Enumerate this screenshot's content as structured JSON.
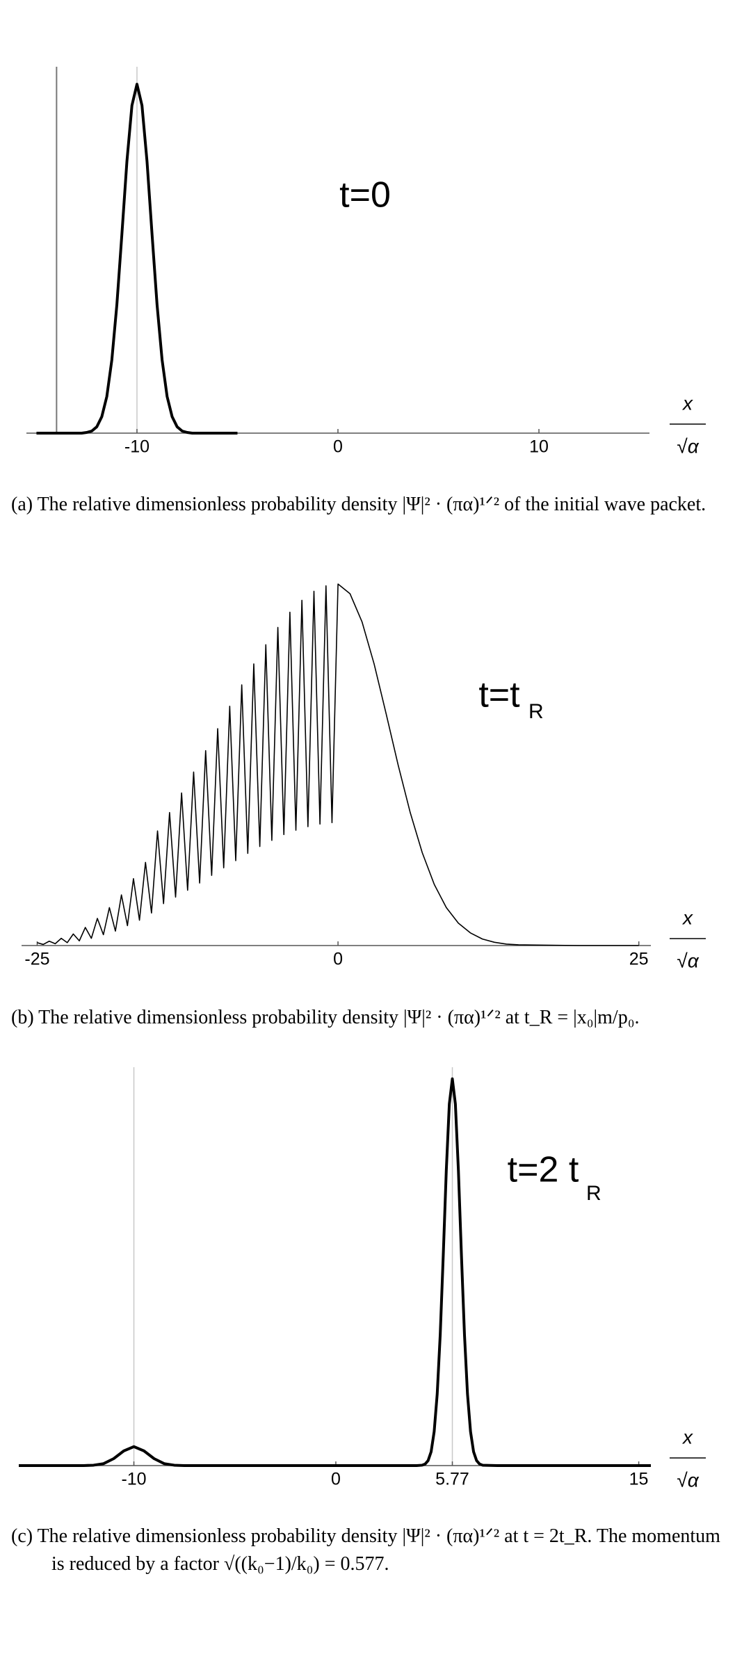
{
  "chart_data": [
    {
      "type": "line",
      "annotation": "t=0",
      "xlabel": "x",
      "xlabel_denominator": "√α",
      "caption": "(a) The relative dimensionless probability density |Ψ|² · (πα)¹ᐟ² of the initial wave packet.",
      "xlim": [
        -15.5,
        15.5
      ],
      "ylim": [
        0,
        1.05
      ],
      "xticks": [
        -10,
        0,
        10
      ],
      "yaxis_x": -14,
      "vlines": [
        -10
      ],
      "color": "#000000",
      "x": [
        -15,
        -14,
        -13,
        -12.75,
        -12.5,
        -12.25,
        -12,
        -11.75,
        -11.5,
        -11.25,
        -11,
        -10.75,
        -10.5,
        -10.25,
        -10,
        -9.75,
        -9.5,
        -9.25,
        -9,
        -8.75,
        -8.5,
        -8.25,
        -8,
        -7.75,
        -7.5,
        -7.25,
        -7,
        -6,
        -5
      ],
      "values": [
        0,
        0,
        0,
        0,
        0.002,
        0.006,
        0.018,
        0.047,
        0.105,
        0.21,
        0.368,
        0.57,
        0.779,
        0.939,
        1,
        0.939,
        0.779,
        0.57,
        0.368,
        0.21,
        0.105,
        0.047,
        0.018,
        0.006,
        0.002,
        0,
        0,
        0,
        0
      ]
    },
    {
      "type": "line",
      "annotation": "t=t",
      "annotation_sub": "R",
      "xlabel": "x",
      "xlabel_denominator": "√α",
      "caption": "(b) The relative dimensionless probability density |Ψ|² · (πα)¹ᐟ² at t_R = |x₀|m/p₀.",
      "xlim": [
        -26.3,
        26
      ],
      "ylim": [
        0,
        1.05
      ],
      "xticks": [
        -25,
        0,
        25
      ],
      "color": "#000000",
      "x": [
        -25,
        -24.5,
        -24,
        -23.5,
        -23,
        -22.5,
        -22,
        -21.5,
        -21,
        -20.5,
        -20,
        -19.5,
        -19,
        -18.5,
        -18,
        -17.5,
        -17,
        -16.5,
        -16,
        -15.5,
        -15,
        -14.5,
        -14,
        -13.5,
        -13,
        -12.5,
        -12,
        -11.5,
        -11,
        -10.5,
        -10,
        -9.5,
        -9,
        -8.5,
        -8,
        -7.5,
        -7,
        -6.5,
        -6,
        -5.5,
        -5,
        -4.5,
        -4,
        -3.5,
        -3,
        -2.5,
        -2,
        -1.5,
        -1,
        -0.5,
        0,
        1,
        2,
        3,
        4,
        5,
        6,
        7,
        8,
        9,
        10,
        11,
        12,
        13,
        14,
        15,
        20,
        25
      ],
      "values": [
        0.008,
        0.003,
        0.012,
        0.005,
        0.02,
        0.008,
        0.032,
        0.013,
        0.05,
        0.02,
        0.075,
        0.03,
        0.105,
        0.04,
        0.14,
        0.055,
        0.185,
        0.07,
        0.23,
        0.09,
        0.317,
        0.116,
        0.368,
        0.134,
        0.422,
        0.153,
        0.48,
        0.173,
        0.539,
        0.194,
        0.6,
        0.215,
        0.662,
        0.235,
        0.721,
        0.255,
        0.779,
        0.274,
        0.832,
        0.291,
        0.88,
        0.307,
        0.922,
        0.319,
        0.955,
        0.329,
        0.98,
        0.336,
        0.995,
        0.34,
        1,
        0.973,
        0.895,
        0.779,
        0.641,
        0.499,
        0.368,
        0.257,
        0.169,
        0.105,
        0.062,
        0.035,
        0.018,
        0.009,
        0.004,
        0.002,
        0,
        0
      ]
    },
    {
      "type": "line",
      "annotation": "t=2 t",
      "annotation_sub": "R",
      "xlabel": "x",
      "xlabel_denominator": "√α",
      "caption": "(c) The relative dimensionless probability density |Ψ|² · (πα)¹ᐟ² at t = 2t_R. The momentum is reduced by a factor √((k₀−1)/k₀) = 0.577.",
      "xlim": [
        -15.7,
        15.6
      ],
      "ylim": [
        0,
        1.03
      ],
      "xticks": [
        -10,
        0,
        5.77,
        15
      ],
      "vlines": [
        -10,
        5.77
      ],
      "color": "#000000",
      "x": [
        -15.7,
        -12.5,
        -12,
        -11.5,
        -11,
        -10.5,
        -10,
        -9.5,
        -9,
        -8.5,
        -8,
        -7.5,
        0,
        4,
        4.27,
        4.42,
        4.57,
        4.72,
        4.87,
        5.02,
        5.17,
        5.32,
        5.47,
        5.62,
        5.77,
        5.92,
        6.07,
        6.22,
        6.37,
        6.52,
        6.67,
        6.82,
        6.97,
        7.12,
        7.27,
        8,
        15.6
      ],
      "values": [
        0,
        0,
        0.001,
        0.005,
        0.018,
        0.038,
        0.049,
        0.038,
        0.018,
        0.005,
        0.001,
        0,
        0,
        0,
        0.001,
        0.004,
        0.013,
        0.036,
        0.088,
        0.185,
        0.339,
        0.544,
        0.763,
        0.935,
        1,
        0.935,
        0.763,
        0.544,
        0.339,
        0.185,
        0.088,
        0.036,
        0.013,
        0.004,
        0.001,
        0,
        0
      ]
    }
  ]
}
